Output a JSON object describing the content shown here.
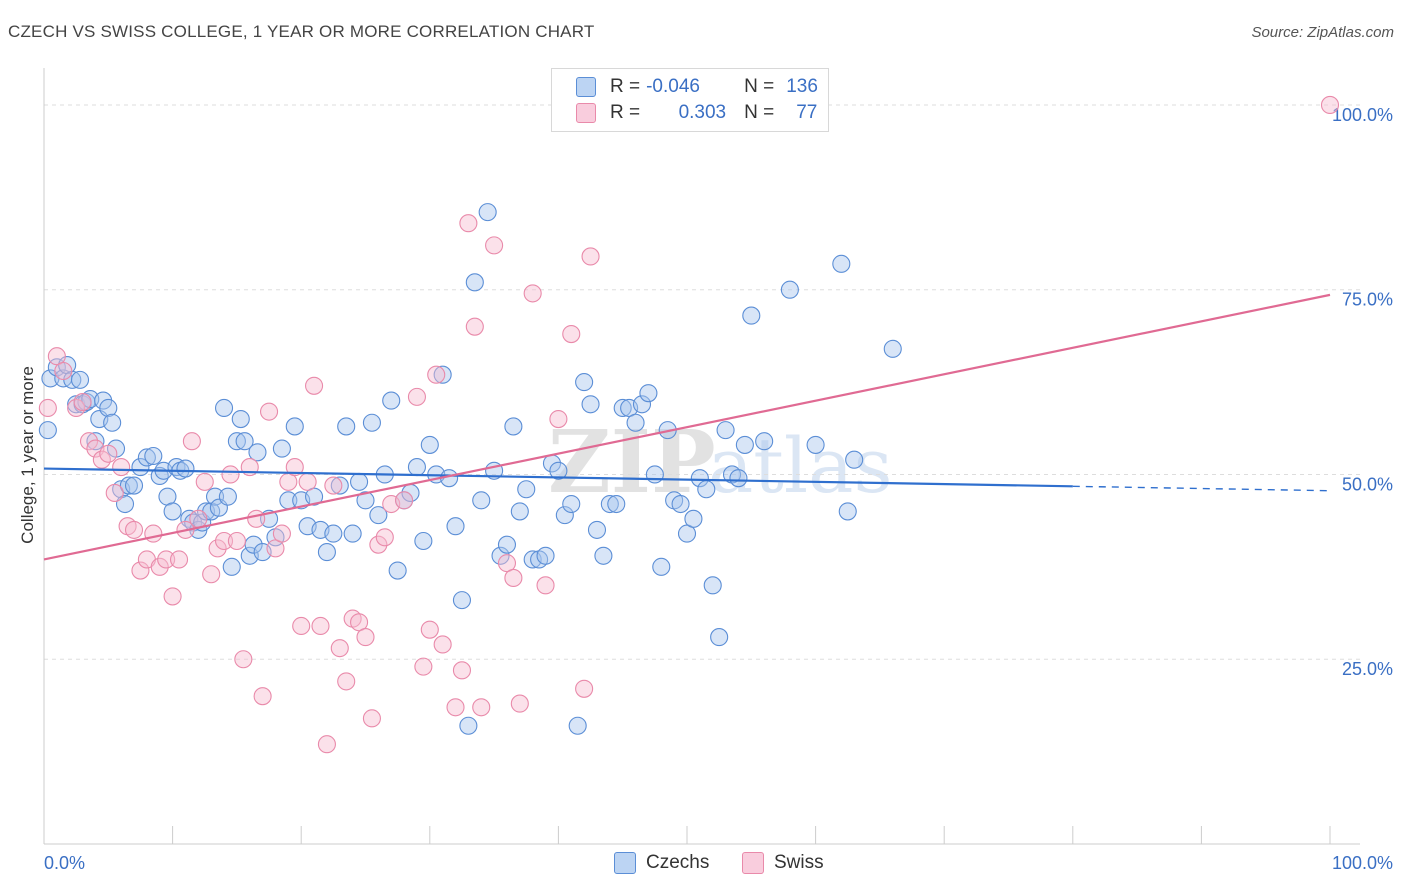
{
  "title": "CZECH VS SWISS COLLEGE, 1 YEAR OR MORE CORRELATION CHART",
  "source": "Source: ZipAtlas.com",
  "watermark": {
    "zip": "ZIP",
    "atlas": "atlas"
  },
  "colors": {
    "czechs": "#5b8ed6",
    "czechs_fill": "#a8c6ee",
    "czechs_line": "#2f6fce",
    "swiss": "#e98aaa",
    "swiss_fill": "#f6bcd0",
    "swiss_line": "#e06a93",
    "axis_text": "#3a6fc4",
    "grid": "#dddddd"
  },
  "legend": {
    "rows": [
      {
        "r_label": "R =",
        "r_value": "-0.046",
        "n_label": "N =",
        "n_value": "136"
      },
      {
        "r_label": "R =",
        "r_value": "0.303",
        "n_label": "N =",
        "n_value": "77"
      }
    ],
    "bottom": [
      "Czechs",
      "Swiss"
    ]
  },
  "chart_data": {
    "type": "scatter",
    "title": "CZECH VS SWISS COLLEGE, 1 YEAR OR MORE CORRELATION CHART",
    "xlabel": "",
    "ylabel": "College, 1 year or more",
    "xlim": [
      0,
      100
    ],
    "ylim": [
      0,
      105
    ],
    "x_tick_labels": [
      "0.0%",
      "100.0%"
    ],
    "y_ticks": [
      25,
      50,
      75,
      100
    ],
    "y_tick_labels": [
      "25.0%",
      "50.0%",
      "75.0%",
      "100.0%"
    ],
    "grid": "horizontal dashed",
    "legend_position": "top-center",
    "series": [
      {
        "name": "Czechs",
        "r": -0.046,
        "n": 136,
        "trend": {
          "x0": 0,
          "y0": 50.8,
          "x1": 80,
          "y1": 48.4,
          "dashed_to": 100,
          "dashed_y": 47.8
        },
        "points": [
          [
            0.3,
            56
          ],
          [
            0.5,
            63
          ],
          [
            1,
            64.5
          ],
          [
            1.5,
            63
          ],
          [
            1.8,
            64.8
          ],
          [
            2.2,
            62.8
          ],
          [
            2.5,
            59.5
          ],
          [
            2.8,
            62.8
          ],
          [
            3,
            59.5
          ],
          [
            3.3,
            59.8
          ],
          [
            3.6,
            60.2
          ],
          [
            4,
            54.5
          ],
          [
            4.3,
            57.5
          ],
          [
            4.6,
            60
          ],
          [
            5,
            59
          ],
          [
            5.3,
            57
          ],
          [
            5.6,
            53.5
          ],
          [
            6,
            48
          ],
          [
            6.3,
            46
          ],
          [
            6.6,
            48.5
          ],
          [
            7,
            48.5
          ],
          [
            7.5,
            51
          ],
          [
            8,
            52.3
          ],
          [
            8.5,
            52.5
          ],
          [
            9,
            49.8
          ],
          [
            9.3,
            50.5
          ],
          [
            9.6,
            47
          ],
          [
            10,
            45
          ],
          [
            10.3,
            51
          ],
          [
            10.6,
            50.5
          ],
          [
            11,
            50.8
          ],
          [
            11.3,
            44
          ],
          [
            11.6,
            43.5
          ],
          [
            12,
            42.5
          ],
          [
            12.3,
            43.5
          ],
          [
            12.6,
            45
          ],
          [
            13,
            45
          ],
          [
            13.3,
            47
          ],
          [
            13.6,
            45.5
          ],
          [
            14,
            59
          ],
          [
            14.3,
            47
          ],
          [
            14.6,
            37.5
          ],
          [
            15,
            54.5
          ],
          [
            15.3,
            57.5
          ],
          [
            15.6,
            54.5
          ],
          [
            16,
            39
          ],
          [
            16.3,
            40.5
          ],
          [
            16.6,
            53
          ],
          [
            17,
            39.5
          ],
          [
            17.5,
            44
          ],
          [
            18,
            41.5
          ],
          [
            18.5,
            53.5
          ],
          [
            19,
            46.5
          ],
          [
            19.5,
            56.5
          ],
          [
            20,
            46.5
          ],
          [
            20.5,
            43
          ],
          [
            21,
            47
          ],
          [
            21.5,
            42.5
          ],
          [
            22,
            39.5
          ],
          [
            22.5,
            42
          ],
          [
            23,
            48.5
          ],
          [
            23.5,
            56.5
          ],
          [
            24,
            42
          ],
          [
            24.5,
            49
          ],
          [
            25,
            46.5
          ],
          [
            25.5,
            57
          ],
          [
            26,
            44.5
          ],
          [
            26.5,
            50
          ],
          [
            27,
            60
          ],
          [
            27.5,
            37
          ],
          [
            28,
            46.5
          ],
          [
            28.5,
            47.5
          ],
          [
            29,
            51
          ],
          [
            29.5,
            41
          ],
          [
            30,
            54
          ],
          [
            30.5,
            50
          ],
          [
            31,
            63.5
          ],
          [
            31.5,
            49.5
          ],
          [
            32,
            43
          ],
          [
            32.5,
            33
          ],
          [
            33,
            16
          ],
          [
            33.5,
            76
          ],
          [
            34,
            46.5
          ],
          [
            34.5,
            85.5
          ],
          [
            35,
            50.5
          ],
          [
            35.5,
            39
          ],
          [
            36,
            40.5
          ],
          [
            36.5,
            56.5
          ],
          [
            37,
            45
          ],
          [
            37.5,
            48
          ],
          [
            38,
            38.5
          ],
          [
            38.5,
            38.5
          ],
          [
            39,
            39
          ],
          [
            39.5,
            51.5
          ],
          [
            40,
            50.5
          ],
          [
            40.5,
            44.5
          ],
          [
            41,
            46
          ],
          [
            41.5,
            16
          ],
          [
            42,
            62.5
          ],
          [
            42.5,
            59.5
          ],
          [
            43,
            42.5
          ],
          [
            43.5,
            39
          ],
          [
            44,
            46
          ],
          [
            44.5,
            46
          ],
          [
            45,
            59
          ],
          [
            45.5,
            59
          ],
          [
            46,
            57
          ],
          [
            46.5,
            59.5
          ],
          [
            47,
            61
          ],
          [
            47.5,
            50
          ],
          [
            48,
            37.5
          ],
          [
            48.5,
            56
          ],
          [
            49,
            46.5
          ],
          [
            49.5,
            46
          ],
          [
            50,
            42
          ],
          [
            50.5,
            44
          ],
          [
            51,
            49.5
          ],
          [
            51.5,
            48
          ],
          [
            52,
            35
          ],
          [
            52.5,
            28
          ],
          [
            53,
            56
          ],
          [
            53.5,
            50
          ],
          [
            54,
            49.5
          ],
          [
            54.5,
            54
          ],
          [
            55,
            71.5
          ],
          [
            56,
            54.5
          ],
          [
            58,
            75
          ],
          [
            60,
            54
          ],
          [
            62,
            78.5
          ],
          [
            62.5,
            45
          ],
          [
            63,
            52
          ],
          [
            66,
            67
          ]
        ]
      },
      {
        "name": "Swiss",
        "r": 0.303,
        "n": 77,
        "trend": {
          "x0": 0,
          "y0": 38.5,
          "x1": 100,
          "y1": 74.3
        },
        "points": [
          [
            0.3,
            59
          ],
          [
            1,
            66
          ],
          [
            1.5,
            64
          ],
          [
            2.5,
            59
          ],
          [
            3,
            59.8
          ],
          [
            3.5,
            54.5
          ],
          [
            4,
            53.5
          ],
          [
            4.5,
            52
          ],
          [
            5,
            52.8
          ],
          [
            5.5,
            47.5
          ],
          [
            6,
            51
          ],
          [
            6.5,
            43
          ],
          [
            7,
            42.5
          ],
          [
            7.5,
            37
          ],
          [
            8,
            38.5
          ],
          [
            8.5,
            42
          ],
          [
            9,
            37.5
          ],
          [
            9.5,
            38.5
          ],
          [
            10,
            33.5
          ],
          [
            10.5,
            38.5
          ],
          [
            11,
            42.5
          ],
          [
            11.5,
            54.5
          ],
          [
            12,
            44
          ],
          [
            12.5,
            49
          ],
          [
            13,
            36.5
          ],
          [
            13.5,
            40
          ],
          [
            14,
            41
          ],
          [
            14.5,
            50
          ],
          [
            15,
            41
          ],
          [
            15.5,
            25
          ],
          [
            16,
            51
          ],
          [
            16.5,
            44
          ],
          [
            17,
            20
          ],
          [
            17.5,
            58.5
          ],
          [
            18,
            40
          ],
          [
            18.5,
            42
          ],
          [
            19,
            49
          ],
          [
            19.5,
            51
          ],
          [
            20,
            29.5
          ],
          [
            20.5,
            49
          ],
          [
            21,
            62
          ],
          [
            21.5,
            29.5
          ],
          [
            22,
            13.5
          ],
          [
            22.5,
            48.5
          ],
          [
            23,
            26.5
          ],
          [
            23.5,
            22
          ],
          [
            24,
            30.5
          ],
          [
            24.5,
            30
          ],
          [
            25,
            28
          ],
          [
            25.5,
            17
          ],
          [
            26,
            40.5
          ],
          [
            26.5,
            41.5
          ],
          [
            27,
            46
          ],
          [
            28,
            46.5
          ],
          [
            29,
            60.5
          ],
          [
            29.5,
            24
          ],
          [
            30,
            29
          ],
          [
            30.5,
            63.5
          ],
          [
            31,
            27
          ],
          [
            32,
            18.5
          ],
          [
            32.5,
            23.5
          ],
          [
            33,
            84
          ],
          [
            33.5,
            70
          ],
          [
            34,
            18.5
          ],
          [
            35,
            81
          ],
          [
            36,
            38
          ],
          [
            36.5,
            36
          ],
          [
            37,
            19
          ],
          [
            38,
            74.5
          ],
          [
            39,
            35
          ],
          [
            40,
            57.5
          ],
          [
            41,
            69
          ],
          [
            42,
            21
          ],
          [
            42.5,
            79.5
          ],
          [
            100,
            100
          ]
        ]
      }
    ]
  }
}
